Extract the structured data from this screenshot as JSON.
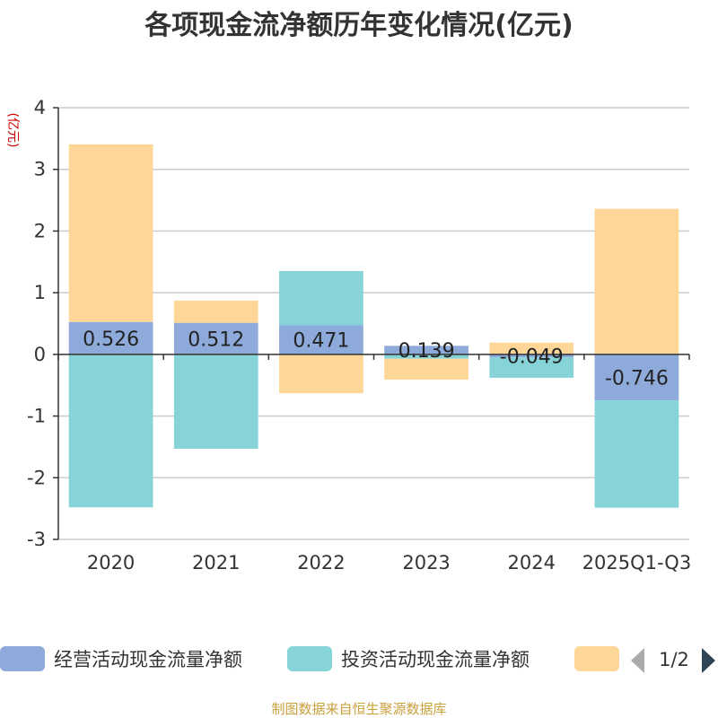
{
  "chart_data": {
    "type": "bar",
    "stacked": true,
    "title": "各项现金流净额历年变化情况(亿元)",
    "ylabel": "(亿元)",
    "xlabel": "",
    "categories": [
      "2020",
      "2021",
      "2022",
      "2023",
      "2024",
      "2025Q1-Q3"
    ],
    "ylim": [
      -3,
      4
    ],
    "yticks": [
      4,
      3,
      2,
      1,
      0,
      -1,
      -2,
      -3
    ],
    "grid": true,
    "series": [
      {
        "name": "经营活动现金流量净额",
        "color": "#8eaadb",
        "values": [
          0.526,
          0.512,
          0.471,
          0.139,
          -0.049,
          -0.746
        ],
        "labels": [
          "0.526",
          "0.512",
          "0.471",
          "0.139",
          "-0.049",
          "-0.746"
        ]
      },
      {
        "name": "投资活动现金流量净额",
        "color": "#86d4d8",
        "values": [
          -2.48,
          -1.53,
          0.88,
          -0.07,
          -0.33,
          -1.74
        ]
      },
      {
        "name": "",
        "color": "#fed698",
        "values": [
          2.88,
          0.36,
          -0.63,
          -0.34,
          0.19,
          2.36
        ]
      }
    ],
    "legend": {
      "position": "bottom",
      "page": "1/2"
    }
  },
  "footer": "制图数据来自恒生聚源数据库"
}
